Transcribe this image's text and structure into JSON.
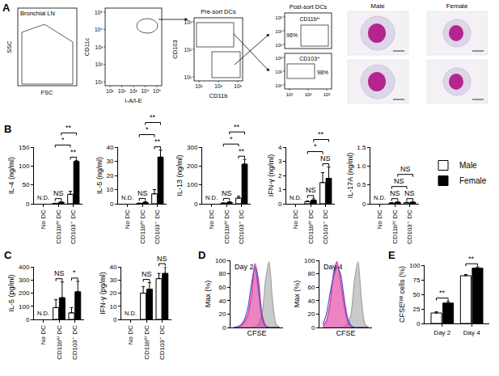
{
  "panel_a": {
    "label": "A",
    "plots": [
      {
        "title": "Bronchial LN",
        "x_label": "FSC",
        "y_label": "SSC"
      },
      {
        "x_label": "I-A/I-E",
        "y_label": "CD11c",
        "x_ticks": [
          "10¹",
          "10²",
          "10³",
          "10⁴",
          "10⁵"
        ],
        "y_ticks": [
          "10¹",
          "10²",
          "10³",
          "10⁴",
          "10⁵"
        ]
      },
      {
        "title": "Pre-sort DCs",
        "x_label": "CD11b",
        "y_label": "CD103",
        "x_ticks": [
          "10¹",
          "10²",
          "10³"
        ],
        "y_ticks": [
          "10¹",
          "10²",
          "10³"
        ]
      },
      {
        "title": "Post-sort DCs",
        "gates": [
          {
            "label": "CD11bʰⁱ",
            "percent": "96%"
          },
          {
            "label": "CD103⁺",
            "percent": "98%"
          }
        ],
        "x_ticks": [
          "10¹",
          "10²",
          "10³"
        ],
        "y_ticks": [
          "10¹",
          "10²",
          "10³"
        ]
      }
    ],
    "images": {
      "columns": [
        "Male",
        "Female"
      ]
    }
  },
  "chart_data": [
    {
      "panel": "B",
      "type": "bar",
      "categories": [
        "No DC",
        "CD11bʰⁱ DC",
        "CD103⁺ DC"
      ],
      "series": [
        {
          "name": "Male",
          "color": "#ffffff",
          "values": [
            null,
            1,
            25
          ],
          "errors": [
            null,
            0.5,
            8
          ]
        },
        {
          "name": "Female",
          "color": "#000000",
          "values": [
            null,
            4,
            112
          ],
          "errors": [
            null,
            1,
            3
          ]
        }
      ],
      "y_label": "IL-4 (ng/ml)",
      "ylim": [
        0,
        150
      ],
      "yticks": [
        0,
        50,
        100,
        150
      ],
      "grid": false,
      "annotations": [
        {
          "text": "N.D.",
          "category": "No DC"
        }
      ],
      "comparisons": [
        {
          "text": "NS",
          "from": [
            "CD11bʰⁱ DC",
            "Male"
          ],
          "to": [
            "CD11bʰⁱ DC",
            "Female"
          ]
        },
        {
          "text": "**",
          "from": [
            "CD103⁺ DC",
            "Male"
          ],
          "to": [
            "CD103⁺ DC",
            "Female"
          ]
        },
        {
          "text": "*",
          "from": [
            "CD11bʰⁱ DC",
            "Male"
          ],
          "to": [
            "CD103⁺ DC",
            "Male"
          ]
        },
        {
          "text": "**",
          "from": [
            "CD11bʰⁱ DC",
            "Female"
          ],
          "to": [
            "CD103⁺ DC",
            "Female"
          ]
        }
      ]
    },
    {
      "panel": "B",
      "type": "bar",
      "categories": [
        "No DC",
        "CD11bʰⁱ DC",
        "CD103⁺ DC"
      ],
      "series": [
        {
          "name": "Male",
          "color": "#ffffff",
          "values": [
            null,
            0.3,
            7
          ],
          "errors": [
            null,
            0.2,
            3
          ]
        },
        {
          "name": "Female",
          "color": "#000000",
          "values": [
            null,
            1,
            33
          ],
          "errors": [
            null,
            0.5,
            5
          ]
        }
      ],
      "y_label": "IL-5 (ng/ml)",
      "ylim": [
        0,
        40
      ],
      "yticks": [
        0,
        10,
        20,
        30,
        40
      ],
      "grid": false,
      "annotations": [
        {
          "text": "N.D.",
          "category": "No DC"
        }
      ],
      "comparisons": [
        {
          "text": "NS",
          "from": [
            "CD11bʰⁱ DC",
            "Male"
          ],
          "to": [
            "CD11bʰⁱ DC",
            "Female"
          ]
        },
        {
          "text": "**",
          "from": [
            "CD103⁺ DC",
            "Male"
          ],
          "to": [
            "CD103⁺ DC",
            "Female"
          ]
        },
        {
          "text": "*",
          "from": [
            "CD11bʰⁱ DC",
            "Male"
          ],
          "to": [
            "CD103⁺ DC",
            "Male"
          ]
        },
        {
          "text": "**",
          "from": [
            "CD11bʰⁱ DC",
            "Female"
          ],
          "to": [
            "CD103⁺ DC",
            "Female"
          ]
        }
      ]
    },
    {
      "panel": "B",
      "type": "bar",
      "categories": [
        "No DC",
        "CD11bʰⁱ DC",
        "CD103⁺ DC"
      ],
      "series": [
        {
          "name": "Male",
          "color": "#ffffff",
          "values": [
            null,
            3,
            30
          ],
          "errors": [
            null,
            2,
            10
          ]
        },
        {
          "name": "Female",
          "color": "#000000",
          "values": [
            null,
            8,
            210
          ],
          "errors": [
            null,
            3,
            25
          ]
        }
      ],
      "y_label": "IL-13 (ng/ml)",
      "ylim": [
        0,
        300
      ],
      "yticks": [
        0,
        100,
        200,
        300
      ],
      "grid": false,
      "annotations": [
        {
          "text": "N.D.",
          "category": "No DC"
        }
      ],
      "comparisons": [
        {
          "text": "NS",
          "from": [
            "CD11bʰⁱ DC",
            "Male"
          ],
          "to": [
            "CD11bʰⁱ DC",
            "Female"
          ]
        },
        {
          "text": "**",
          "from": [
            "CD103⁺ DC",
            "Male"
          ],
          "to": [
            "CD103⁺ DC",
            "Female"
          ]
        },
        {
          "text": "*",
          "from": [
            "CD11bʰⁱ DC",
            "Male"
          ],
          "to": [
            "CD103⁺ DC",
            "Male"
          ]
        },
        {
          "text": "**",
          "from": [
            "CD11bʰⁱ DC",
            "Female"
          ],
          "to": [
            "CD103⁺ DC",
            "Female"
          ]
        }
      ]
    },
    {
      "panel": "B",
      "type": "bar",
      "categories": [
        "No DC",
        "CD11bʰⁱ DC",
        "CD103⁺ DC"
      ],
      "series": [
        {
          "name": "Male",
          "color": "#ffffff",
          "values": [
            null,
            0.15,
            1.5
          ],
          "errors": [
            null,
            0.05,
            0.7
          ]
        },
        {
          "name": "Female",
          "color": "#000000",
          "values": [
            null,
            0.25,
            1.8
          ],
          "errors": [
            null,
            0.1,
            0.8
          ]
        }
      ],
      "y_label": "IFN-γ (ng/ml)",
      "ylim": [
        0,
        4
      ],
      "yticks": [
        0,
        1,
        2,
        3,
        4
      ],
      "grid": false,
      "annotations": [
        {
          "text": "N.D.",
          "category": "No DC"
        }
      ],
      "comparisons": [
        {
          "text": "NS",
          "from": [
            "CD11bʰⁱ DC",
            "Male"
          ],
          "to": [
            "CD11bʰⁱ DC",
            "Female"
          ]
        },
        {
          "text": "NS",
          "from": [
            "CD103⁺ DC",
            "Male"
          ],
          "to": [
            "CD103⁺ DC",
            "Female"
          ]
        },
        {
          "text": "*",
          "from": [
            "CD11bʰⁱ DC",
            "Male"
          ],
          "to": [
            "CD103⁺ DC",
            "Male"
          ]
        },
        {
          "text": "**",
          "from": [
            "CD11bʰⁱ DC",
            "Female"
          ],
          "to": [
            "CD103⁺ DC",
            "Female"
          ]
        }
      ]
    },
    {
      "panel": "B",
      "type": "bar",
      "categories": [
        "No DC",
        "CD11bʰⁱ DC",
        "CD103⁺ DC"
      ],
      "series": [
        {
          "name": "Male",
          "color": "#ffffff",
          "values": [
            null,
            0.02,
            0.03
          ],
          "errors": [
            null,
            0.01,
            0.01
          ]
        },
        {
          "name": "Female",
          "color": "#000000",
          "values": [
            null,
            0.04,
            0.04
          ],
          "errors": [
            null,
            0.01,
            0.01
          ]
        }
      ],
      "y_label": "IL-17A (ng/ml)",
      "ylim": [
        0,
        1.5
      ],
      "yticks": [
        0,
        0.5,
        {
          "value": 1,
          "label": "1.0"
        },
        1.5
      ],
      "grid": false,
      "legend": "right",
      "annotations": [
        {
          "text": "N.D.",
          "category": "No DC"
        }
      ],
      "comparisons": [
        {
          "text": "NS",
          "from": [
            "CD11bʰⁱ DC",
            "Male"
          ],
          "to": [
            "CD11bʰⁱ DC",
            "Female"
          ]
        },
        {
          "text": "NS",
          "from": [
            "CD103⁺ DC",
            "Male"
          ],
          "to": [
            "CD103⁺ DC",
            "Female"
          ]
        },
        {
          "text": "NS",
          "from": [
            "CD11bʰⁱ DC",
            "Male"
          ],
          "to": [
            "CD103⁺ DC",
            "Male"
          ]
        },
        {
          "text": "NS",
          "from": [
            "CD11bʰⁱ DC",
            "Female"
          ],
          "to": [
            "CD103⁺ DC",
            "Female"
          ]
        }
      ]
    },
    {
      "panel": "C",
      "type": "bar",
      "categories": [
        "No DC",
        "CD11bʰⁱ DC",
        "CD103⁺ DC"
      ],
      "series": [
        {
          "name": "Male",
          "color": "#ffffff",
          "values": [
            null,
            90,
            50
          ],
          "errors": [
            null,
            60,
            40
          ]
        },
        {
          "name": "Female",
          "color": "#000000",
          "values": [
            null,
            165,
            210
          ],
          "errors": [
            null,
            120,
            80
          ]
        }
      ],
      "y_label": "IL-5 (pg/ml)",
      "ylim": [
        0,
        400
      ],
      "yticks": [
        0,
        100,
        200,
        300,
        400
      ],
      "grid": false,
      "annotations": [
        {
          "text": "N.D.",
          "category": "No DC"
        }
      ],
      "comparisons": [
        {
          "text": "NS",
          "from": [
            "CD11bʰⁱ DC",
            "Male"
          ],
          "to": [
            "CD11bʰⁱ DC",
            "Female"
          ]
        },
        {
          "text": "*",
          "from": [
            "CD103⁺ DC",
            "Male"
          ],
          "to": [
            "CD103⁺ DC",
            "Female"
          ]
        }
      ]
    },
    {
      "panel": "C",
      "type": "bar",
      "categories": [
        "No DC",
        "CD11bʰⁱ DC",
        "CD103⁺ DC"
      ],
      "series": [
        {
          "name": "Male",
          "color": "#ffffff",
          "values": [
            null,
            20,
            31
          ],
          "errors": [
            null,
            5,
            4
          ]
        },
        {
          "name": "Female",
          "color": "#000000",
          "values": [
            null,
            23,
            35
          ],
          "errors": [
            null,
            5,
            5
          ]
        }
      ],
      "y_label": "IFN-γ (pg/ml)",
      "ylim": [
        0,
        40
      ],
      "yticks": [
        0,
        10,
        20,
        30,
        40
      ],
      "grid": false,
      "annotations": [
        {
          "text": "N.D.",
          "category": "No DC"
        }
      ],
      "comparisons": [
        {
          "text": "NS",
          "from": [
            "CD11bʰⁱ DC",
            "Male"
          ],
          "to": [
            "CD11bʰⁱ DC",
            "Female"
          ]
        },
        {
          "text": "NS",
          "from": [
            "CD103⁺ DC",
            "Male"
          ],
          "to": [
            "CD103⁺ DC",
            "Female"
          ]
        }
      ]
    },
    {
      "panel": "D",
      "type": "line",
      "x": [
        30,
        35,
        40,
        45,
        50,
        55,
        60,
        65,
        70,
        75,
        80,
        85,
        90,
        95
      ],
      "series": [
        {
          "color": "#a6a6a6",
          "type": "area",
          "values": [
            0,
            0,
            0,
            0,
            0,
            0,
            1,
            5,
            20,
            70,
            98,
            40,
            5,
            0
          ]
        },
        {
          "color": "#e0309a",
          "type": "area",
          "values": [
            0,
            1,
            3,
            8,
            20,
            50,
            95,
            70,
            20,
            3,
            0,
            0,
            0,
            0
          ]
        },
        {
          "color": "#4a5fc8",
          "type": "line",
          "values": [
            0,
            1,
            4,
            12,
            30,
            65,
            90,
            55,
            15,
            2,
            0,
            0,
            0,
            0
          ]
        }
      ],
      "x_label": "CFSE",
      "y_label": "Max (%)",
      "xlim": [
        25,
        100
      ],
      "ylim": [
        0,
        100
      ],
      "yticks": [
        0,
        20,
        40,
        60,
        80,
        100
      ],
      "tick_labels": "y",
      "grid": false,
      "annotations": [
        {
          "text": "Day 2"
        }
      ]
    },
    {
      "panel": "D",
      "type": "line",
      "x": [
        30,
        35,
        40,
        45,
        50,
        55,
        60,
        65,
        70,
        75,
        80,
        85,
        90,
        95
      ],
      "series": [
        {
          "color": "#a6a6a6",
          "type": "area",
          "values": [
            0,
            0,
            0,
            0,
            0,
            0,
            1,
            5,
            20,
            70,
            98,
            40,
            5,
            0
          ]
        },
        {
          "color": "#e0309a",
          "type": "area",
          "values": [
            2,
            10,
            35,
            80,
            98,
            70,
            35,
            10,
            2,
            0,
            0,
            0,
            0,
            0
          ]
        },
        {
          "color": "#4a5fc8",
          "type": "line",
          "values": [
            5,
            20,
            50,
            75,
            90,
            80,
            45,
            15,
            3,
            0,
            0,
            0,
            0,
            0
          ]
        }
      ],
      "x_label": "CFSE",
      "y_label": "Max (%)",
      "xlim": [
        25,
        100
      ],
      "ylim": [
        0,
        100
      ],
      "yticks": [
        0,
        20,
        40,
        60,
        80,
        100
      ],
      "tick_labels": "y",
      "grid": false,
      "annotations": [
        {
          "text": "Day 4"
        }
      ]
    },
    {
      "panel": "E",
      "type": "bar",
      "categories": [
        "Day 2",
        "Day 4"
      ],
      "series": [
        {
          "name": "Male",
          "color": "#ffffff",
          "values": [
            18,
            82
          ],
          "errors": [
            2,
            2
          ]
        },
        {
          "name": "Female",
          "color": "#000000",
          "values": [
            35,
            95
          ],
          "errors": [
            3,
            2
          ]
        }
      ],
      "y_label": "CFSEˡᵒʷ cells (%)",
      "ylim": [
        0,
        100
      ],
      "yticks": [
        0,
        25,
        50,
        75,
        100
      ],
      "grid": false,
      "comparisons": [
        {
          "text": "**",
          "from": [
            "Day 2",
            "Male"
          ],
          "to": [
            "Day 2",
            "Female"
          ]
        },
        {
          "text": "**",
          "from": [
            "Day 4",
            "Male"
          ],
          "to": [
            "Day 4",
            "Female"
          ]
        }
      ]
    }
  ]
}
